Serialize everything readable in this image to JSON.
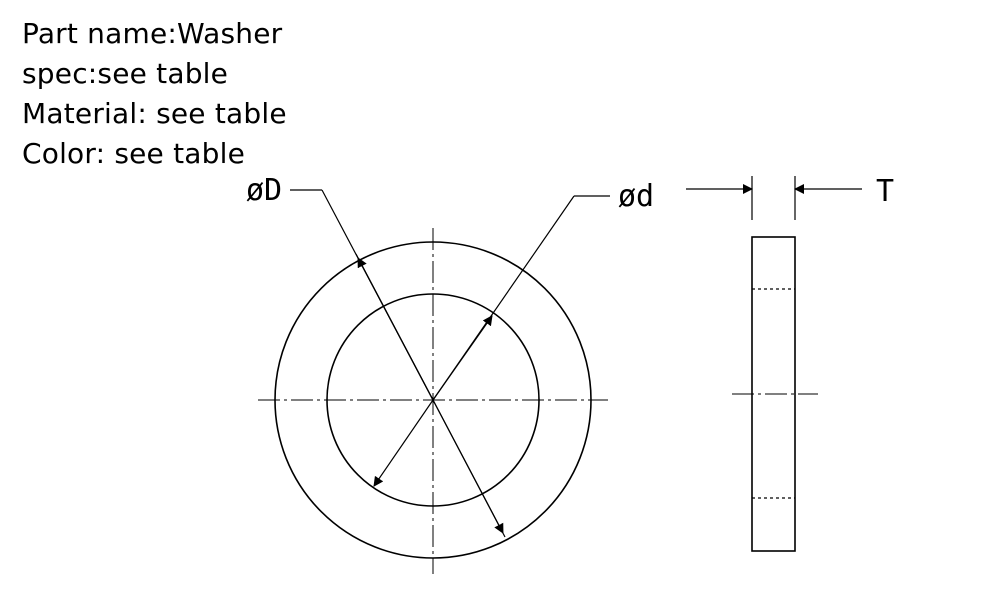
{
  "specs": {
    "part_name": "Part name:Washer",
    "spec": "spec:see table",
    "material": "Material: see table",
    "color": "Color: see table"
  },
  "dimensions": {
    "outer_diameter": "øD",
    "inner_diameter": "ød",
    "thickness": "T"
  }
}
